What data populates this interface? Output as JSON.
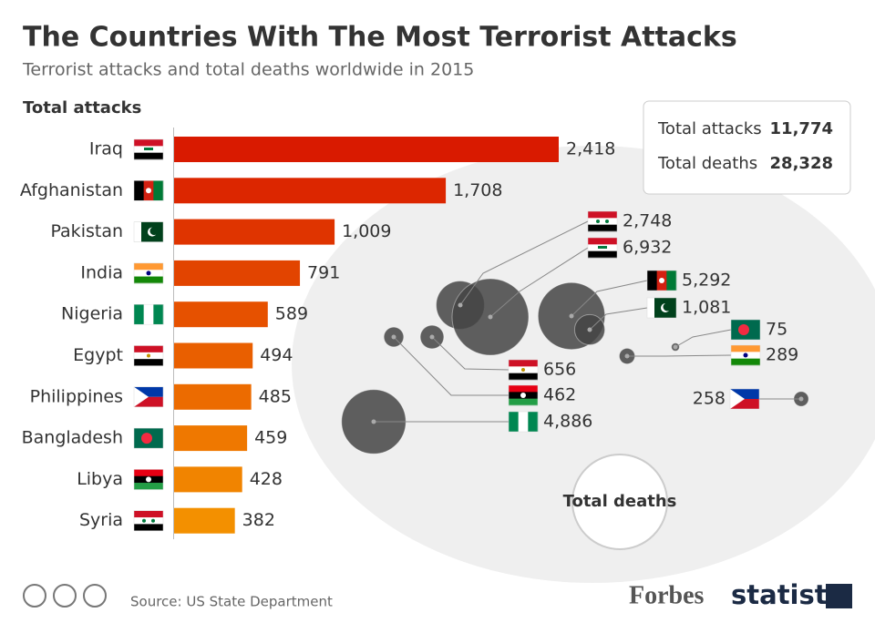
{
  "header": {
    "title": "The Countries With The Most Terrorist Attacks",
    "subtitle": "Terrorist attacks and total deaths worldwide in 2015"
  },
  "chart_data": [
    {
      "type": "bar",
      "title": "Total attacks",
      "categories": [
        "Iraq",
        "Afghanistan",
        "Pakistan",
        "India",
        "Nigeria",
        "Egypt",
        "Philippines",
        "Bangladesh",
        "Libya",
        "Syria"
      ],
      "values": [
        2418,
        1708,
        1009,
        791,
        589,
        494,
        485,
        459,
        428,
        382
      ],
      "value_labels": [
        "2,418",
        "1,708",
        "1,009",
        "791",
        "589",
        "494",
        "485",
        "459",
        "428",
        "382"
      ],
      "colors": [
        "#d91a00",
        "#dc2600",
        "#df3400",
        "#e24400",
        "#e65100",
        "#e95f00",
        "#ec6b00",
        "#ef7800",
        "#f18400",
        "#f39000"
      ]
    },
    {
      "type": "bubble",
      "title": "Total deaths",
      "values": [
        2748,
        6932,
        5292,
        1081,
        75,
        289,
        656,
        462,
        4886,
        258
      ],
      "value_labels": [
        "2,748",
        "6,932",
        "5,292",
        "1,081",
        "75",
        "289",
        "656",
        "462",
        "4,886",
        "258"
      ],
      "color": "#444444"
    }
  ],
  "summary": [
    {
      "label": "Total attacks",
      "value": "11,774"
    },
    {
      "label": "Total deaths",
      "value": "28,328"
    }
  ],
  "footer": {
    "source": "Source: US State Department",
    "brand1": "Forbes",
    "brand2": "statista"
  }
}
